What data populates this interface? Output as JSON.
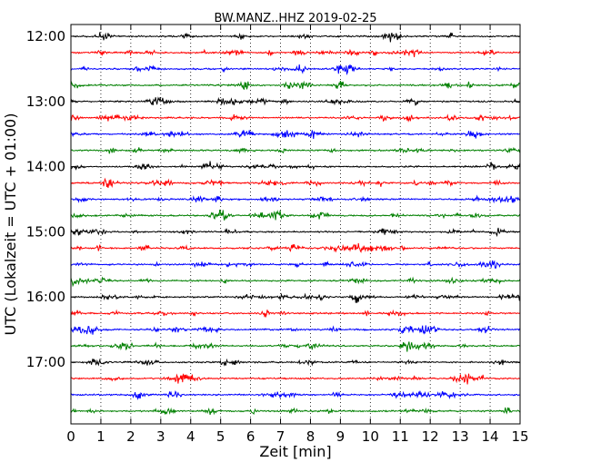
{
  "chart_data": {
    "type": "line",
    "title": "BW.MANZ..HHZ 2019-02-25",
    "xlabel": "Zeit  [min]",
    "ylabel": "UTC (Lokalzeit = UTC + 01:00)",
    "xlim": [
      0,
      15
    ],
    "x_ticks": [
      0,
      1,
      2,
      3,
      4,
      5,
      6,
      7,
      8,
      9,
      10,
      11,
      12,
      13,
      14,
      15
    ],
    "x_tick_labels": [
      "0",
      "1",
      "2",
      "3",
      "4",
      "5",
      "6",
      "7",
      "8",
      "9",
      "10",
      "11",
      "12",
      "13",
      "14",
      "15"
    ],
    "y_tick_labels": [
      "12:00",
      "13:00",
      "14:00",
      "15:00",
      "16:00",
      "17:00"
    ],
    "y_tick_traces": [
      0,
      4,
      8,
      12,
      16,
      20
    ],
    "trace_interval_min": 15,
    "trace_count": 24,
    "trace_colors": [
      "#000000",
      "#ff0000",
      "#0000ff",
      "#008000"
    ],
    "grid": "vertical-dotted"
  }
}
